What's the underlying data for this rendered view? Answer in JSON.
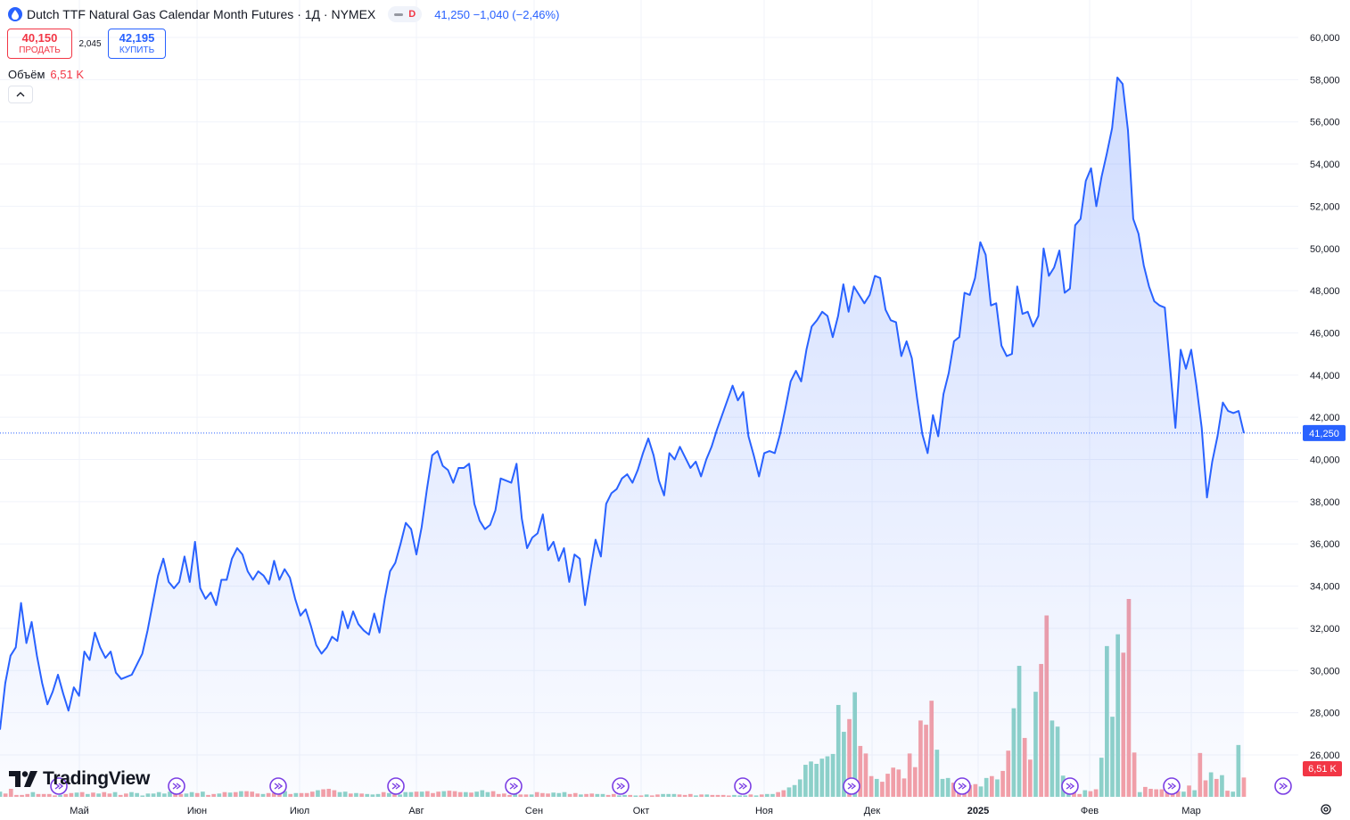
{
  "header": {
    "title": "Dutch TTF Natural Gas Calendar Month Futures · 1Д · NYMEX",
    "interval_badge": "D",
    "price_summary": "41,250  −1,040 (−2,46%)"
  },
  "trade": {
    "sell_price": "40,150",
    "sell_label": "ПРОДАТЬ",
    "spread": "2,045",
    "buy_price": "42,195",
    "buy_label": "КУПИТЬ"
  },
  "volume_legend": {
    "label": "Объём",
    "value": "6,51 K"
  },
  "brand": {
    "name": "TradingView"
  },
  "colors": {
    "line": "#2962ff",
    "up_volume": "#8fd3c8",
    "down_volume": "#f5a0a6",
    "last_price_label": "#2962ff",
    "volume_label": "#f23645"
  },
  "chart_data": {
    "type": "area",
    "ylim": [
      25000,
      60500
    ],
    "y_ticks": [
      "60,000",
      "58,000",
      "56,000",
      "54,000",
      "52,000",
      "50,000",
      "48,000",
      "46,000",
      "44,000",
      "42,000",
      "40,000",
      "38,000",
      "36,000",
      "34,000",
      "32,000",
      "30,000",
      "28,000",
      "26,000"
    ],
    "x_labels": [
      "Май",
      "Июн",
      "Июл",
      "Авг",
      "Сен",
      "Окт",
      "Ноя",
      "Дек",
      "2025",
      "Фев",
      "Мар"
    ],
    "x_label_dates": [
      "2024-05-01",
      "2024-06-03",
      "2024-07-01",
      "2024-08-01",
      "2024-09-02",
      "2024-10-01",
      "2024-11-01",
      "2024-12-02",
      "2025-01-02",
      "2025-02-03",
      "2025-03-03"
    ],
    "last_price": 41250,
    "last_price_label": "41,250",
    "last_volume_label": "6,51 K",
    "series": [
      {
        "values": [
          27200,
          29400,
          30700,
          31100,
          33200,
          31300,
          32300,
          30700,
          29400,
          28400,
          29000,
          29800,
          28900,
          28100,
          29200,
          28800,
          30900,
          30500,
          31800,
          31100,
          30600,
          30900,
          29900,
          29600,
          29700,
          29800,
          30300,
          30800,
          31900,
          33200,
          34500,
          35300,
          34200,
          33900,
          34200,
          35400,
          34200,
          36100,
          33900,
          33400,
          33700,
          33100,
          34300,
          34300,
          35300,
          35800,
          35500,
          34700,
          34300,
          34700,
          34500,
          34100,
          35200,
          34300,
          34800,
          34400,
          33400,
          32600,
          32900,
          32100,
          31200,
          30800,
          31100,
          31600,
          31400,
          32800,
          32000,
          32800,
          32200,
          31900,
          31700,
          32700,
          31800,
          33400,
          34700,
          35100,
          36000,
          37000,
          36700,
          35500,
          36800,
          38600,
          40200,
          40400,
          39700,
          39500,
          38900,
          39600,
          39600,
          39800,
          37900,
          37100,
          36700,
          36900,
          37600,
          39100,
          39000,
          38900,
          39800,
          37200,
          35800,
          36300,
          36500,
          37400,
          35700,
          36100,
          35200,
          35800,
          34200,
          35500,
          35300,
          33100,
          34700,
          36200,
          35400,
          37900,
          38400,
          38600,
          39100,
          39300,
          38900,
          39500,
          40300,
          41000,
          40200,
          39000,
          38300,
          40300,
          40000,
          40600,
          40100,
          39600,
          39900,
          39200,
          40000,
          40600,
          41400,
          42100,
          42800,
          43500,
          42800,
          43200,
          41100,
          40200,
          39200,
          40300,
          40400,
          40300,
          41200,
          42400,
          43700,
          44200,
          43700,
          45200,
          46300,
          46600,
          47000,
          46800,
          45800,
          46800,
          48300,
          47000,
          48200,
          47800,
          47400,
          47800,
          48700,
          48600,
          47100,
          46600,
          46500,
          44900,
          45600,
          44800,
          42900,
          41200,
          40300,
          42100,
          41100,
          43100,
          44100,
          45600,
          45800,
          47900,
          47800,
          48600,
          50300,
          49700,
          47300,
          47400,
          45400,
          44900,
          45000,
          48200,
          46900,
          47000,
          46300,
          46800,
          50000,
          48700,
          49100,
          49900,
          47900,
          48100,
          51100,
          51400,
          53200,
          53800,
          52000,
          53400,
          54500,
          55700,
          58100,
          57800,
          55600,
          51400,
          50700,
          49200,
          48200,
          47500,
          47300,
          47200,
          44400,
          41500,
          45200,
          44300,
          45200,
          43500,
          41500,
          38200,
          39900,
          41100,
          42700,
          42300,
          42200,
          42300,
          41250
        ]
      }
    ],
    "volume": [
      {
        "v": 11,
        "up": true
      },
      {
        "v": 7,
        "up": false
      },
      {
        "v": 17,
        "up": false
      },
      {
        "v": 4,
        "up": false
      },
      {
        "v": 4,
        "up": false
      },
      {
        "v": 6,
        "up": false
      },
      {
        "v": 10,
        "up": true
      },
      {
        "v": 6,
        "up": false
      },
      {
        "v": 6,
        "up": false
      },
      {
        "v": 6,
        "up": false
      },
      {
        "v": 3,
        "up": false
      },
      {
        "v": 4,
        "up": true
      },
      {
        "v": 6,
        "up": false
      },
      {
        "v": 8,
        "up": false
      },
      {
        "v": 9,
        "up": true
      },
      {
        "v": 10,
        "up": false
      },
      {
        "v": 6,
        "up": true
      },
      {
        "v": 9,
        "up": false
      },
      {
        "v": 7,
        "up": true
      },
      {
        "v": 10,
        "up": false
      },
      {
        "v": 7,
        "up": false
      },
      {
        "v": 10,
        "up": true
      },
      {
        "v": 4,
        "up": false
      },
      {
        "v": 7,
        "up": false
      },
      {
        "v": 10,
        "up": true
      },
      {
        "v": 8,
        "up": true
      },
      {
        "v": 2,
        "up": true
      },
      {
        "v": 7,
        "up": true
      },
      {
        "v": 7,
        "up": true
      },
      {
        "v": 10,
        "up": true
      },
      {
        "v": 7,
        "up": true
      },
      {
        "v": 11,
        "up": true
      },
      {
        "v": 8,
        "up": false
      },
      {
        "v": 6,
        "up": false
      },
      {
        "v": 7,
        "up": true
      },
      {
        "v": 10,
        "up": true
      },
      {
        "v": 8,
        "up": false
      },
      {
        "v": 11,
        "up": true
      },
      {
        "v": 4,
        "up": false
      },
      {
        "v": 6,
        "up": false
      },
      {
        "v": 7,
        "up": true
      },
      {
        "v": 10,
        "up": false
      },
      {
        "v": 9,
        "up": true
      },
      {
        "v": 10,
        "up": false
      },
      {
        "v": 12,
        "up": true
      },
      {
        "v": 12,
        "up": false
      },
      {
        "v": 11,
        "up": false
      },
      {
        "v": 7,
        "up": false
      },
      {
        "v": 6,
        "up": true
      },
      {
        "v": 8,
        "up": false
      },
      {
        "v": 8,
        "up": false
      },
      {
        "v": 10,
        "up": false
      },
      {
        "v": 12,
        "up": true
      },
      {
        "v": 6,
        "up": false
      },
      {
        "v": 8,
        "up": true
      },
      {
        "v": 8,
        "up": false
      },
      {
        "v": 8,
        "up": false
      },
      {
        "v": 11,
        "up": false
      },
      {
        "v": 14,
        "up": true
      },
      {
        "v": 16,
        "up": false
      },
      {
        "v": 17,
        "up": false
      },
      {
        "v": 14,
        "up": false
      },
      {
        "v": 10,
        "up": true
      },
      {
        "v": 11,
        "up": true
      },
      {
        "v": 7,
        "up": false
      },
      {
        "v": 8,
        "up": true
      },
      {
        "v": 7,
        "up": false
      },
      {
        "v": 6,
        "up": true
      },
      {
        "v": 5,
        "up": true
      },
      {
        "v": 6,
        "up": true
      },
      {
        "v": 10,
        "up": false
      },
      {
        "v": 8,
        "up": true
      },
      {
        "v": 5,
        "up": false
      },
      {
        "v": 5,
        "up": true
      },
      {
        "v": 10,
        "up": true
      },
      {
        "v": 10,
        "up": true
      },
      {
        "v": 11,
        "up": false
      },
      {
        "v": 11,
        "up": true
      },
      {
        "v": 12,
        "up": false
      },
      {
        "v": 8,
        "up": false
      },
      {
        "v": 11,
        "up": false
      },
      {
        "v": 12,
        "up": true
      },
      {
        "v": 13,
        "up": false
      },
      {
        "v": 12,
        "up": false
      },
      {
        "v": 10,
        "up": false
      },
      {
        "v": 10,
        "up": true
      },
      {
        "v": 9,
        "up": false
      },
      {
        "v": 11,
        "up": true
      },
      {
        "v": 14,
        "up": true
      },
      {
        "v": 10,
        "up": true
      },
      {
        "v": 12,
        "up": false
      },
      {
        "v": 6,
        "up": false
      },
      {
        "v": 7,
        "up": false
      },
      {
        "v": 4,
        "up": false
      },
      {
        "v": 6,
        "up": true
      },
      {
        "v": 5,
        "up": false
      },
      {
        "v": 5,
        "up": false
      },
      {
        "v": 5,
        "up": true
      },
      {
        "v": 10,
        "up": false
      },
      {
        "v": 8,
        "up": false
      },
      {
        "v": 7,
        "up": false
      },
      {
        "v": 9,
        "up": true
      },
      {
        "v": 8,
        "up": true
      },
      {
        "v": 10,
        "up": true
      },
      {
        "v": 6,
        "up": false
      },
      {
        "v": 8,
        "up": false
      },
      {
        "v": 5,
        "up": true
      },
      {
        "v": 6,
        "up": false
      },
      {
        "v": 7,
        "up": false
      },
      {
        "v": 6,
        "up": true
      },
      {
        "v": 6,
        "up": true
      },
      {
        "v": 4,
        "up": false
      },
      {
        "v": 6,
        "up": false
      },
      {
        "v": 3,
        "up": true
      },
      {
        "v": 4,
        "up": true
      },
      {
        "v": 4,
        "up": false
      },
      {
        "v": 2,
        "up": true
      },
      {
        "v": 3,
        "up": false
      },
      {
        "v": 5,
        "up": true
      },
      {
        "v": 3,
        "up": false
      },
      {
        "v": 5,
        "up": false
      },
      {
        "v": 6,
        "up": true
      },
      {
        "v": 6,
        "up": true
      },
      {
        "v": 6,
        "up": true
      },
      {
        "v": 5,
        "up": false
      },
      {
        "v": 4,
        "up": false
      },
      {
        "v": 6,
        "up": false
      },
      {
        "v": 3,
        "up": true
      },
      {
        "v": 5,
        "up": false
      },
      {
        "v": 5,
        "up": true
      },
      {
        "v": 4,
        "up": false
      },
      {
        "v": 4,
        "up": false
      },
      {
        "v": 4,
        "up": false
      },
      {
        "v": 2,
        "up": false
      },
      {
        "v": 4,
        "up": true
      },
      {
        "v": 3,
        "up": true
      },
      {
        "v": 3,
        "up": true
      },
      {
        "v": 5,
        "up": false
      },
      {
        "v": 3,
        "up": true
      },
      {
        "v": 5,
        "up": false
      },
      {
        "v": 6,
        "up": true
      },
      {
        "v": 6,
        "up": true
      },
      {
        "v": 10,
        "up": false
      },
      {
        "v": 14,
        "up": false
      },
      {
        "v": 20,
        "up": true
      },
      {
        "v": 25,
        "up": true
      },
      {
        "v": 37,
        "up": true
      },
      {
        "v": 68,
        "up": true
      },
      {
        "v": 75,
        "up": true
      },
      {
        "v": 70,
        "up": true
      },
      {
        "v": 81,
        "up": true
      },
      {
        "v": 86,
        "up": true
      },
      {
        "v": 91,
        "up": true
      },
      {
        "v": 195,
        "up": true
      },
      {
        "v": 138,
        "up": true
      },
      {
        "v": 165,
        "up": false
      },
      {
        "v": 222,
        "up": true
      },
      {
        "v": 108,
        "up": false
      },
      {
        "v": 92,
        "up": false
      },
      {
        "v": 44,
        "up": false
      },
      {
        "v": 38,
        "up": true
      },
      {
        "v": 32,
        "up": false
      },
      {
        "v": 49,
        "up": false
      },
      {
        "v": 62,
        "up": false
      },
      {
        "v": 58,
        "up": false
      },
      {
        "v": 39,
        "up": false
      },
      {
        "v": 92,
        "up": false
      },
      {
        "v": 63,
        "up": false
      },
      {
        "v": 162,
        "up": false
      },
      {
        "v": 153,
        "up": false
      },
      {
        "v": 204,
        "up": false
      },
      {
        "v": 100,
        "up": true
      },
      {
        "v": 38,
        "up": true
      },
      {
        "v": 40,
        "up": true
      },
      {
        "v": 30,
        "up": false
      },
      {
        "v": 25,
        "up": false
      },
      {
        "v": 24,
        "up": false
      },
      {
        "v": 25,
        "up": false
      },
      {
        "v": 27,
        "up": false
      },
      {
        "v": 22,
        "up": true
      },
      {
        "v": 40,
        "up": true
      },
      {
        "v": 44,
        "up": false
      },
      {
        "v": 37,
        "up": true
      },
      {
        "v": 55,
        "up": false
      },
      {
        "v": 98,
        "up": false
      },
      {
        "v": 188,
        "up": true
      },
      {
        "v": 278,
        "up": true
      },
      {
        "v": 125,
        "up": false
      },
      {
        "v": 79,
        "up": false
      },
      {
        "v": 223,
        "up": true
      },
      {
        "v": 282,
        "up": false
      },
      {
        "v": 385,
        "up": false
      },
      {
        "v": 162,
        "up": true
      },
      {
        "v": 149,
        "up": true
      },
      {
        "v": 45,
        "up": true
      },
      {
        "v": 24,
        "up": true
      },
      {
        "v": 24,
        "up": false
      },
      {
        "v": 6,
        "up": false
      },
      {
        "v": 14,
        "up": true
      },
      {
        "v": 12,
        "up": false
      },
      {
        "v": 16,
        "up": false
      },
      {
        "v": 83,
        "up": true
      },
      {
        "v": 320,
        "up": true
      },
      {
        "v": 170,
        "up": true
      },
      {
        "v": 345,
        "up": true
      },
      {
        "v": 306,
        "up": false
      },
      {
        "v": 420,
        "up": false
      },
      {
        "v": 94,
        "up": false
      },
      {
        "v": 10,
        "up": true
      },
      {
        "v": 21,
        "up": false
      },
      {
        "v": 17,
        "up": false
      },
      {
        "v": 16,
        "up": false
      },
      {
        "v": 16,
        "up": false
      },
      {
        "v": 27,
        "up": false
      },
      {
        "v": 11,
        "up": false
      },
      {
        "v": 12,
        "up": false
      },
      {
        "v": 11,
        "up": true
      },
      {
        "v": 24,
        "up": false
      },
      {
        "v": 14,
        "up": true
      },
      {
        "v": 93,
        "up": false
      },
      {
        "v": 35,
        "up": false
      },
      {
        "v": 52,
        "up": true
      },
      {
        "v": 38,
        "up": false
      },
      {
        "v": 46,
        "up": true
      },
      {
        "v": 13,
        "up": false
      },
      {
        "v": 11,
        "up": true
      },
      {
        "v": 110,
        "up": true
      },
      {
        "v": 41,
        "up": false
      }
    ],
    "event_markers": 11
  }
}
